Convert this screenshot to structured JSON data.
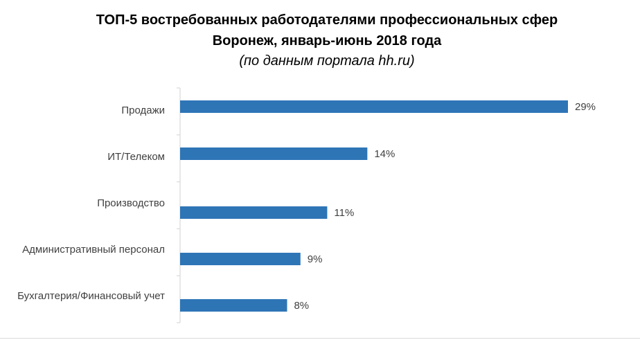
{
  "chart_data": {
    "type": "bar",
    "orientation": "horizontal",
    "title_lines": [
      "ТОП-5 востребованных работодателями профессиональных сфер",
      "Воронеж, январь-июнь 2018 года"
    ],
    "subtitle": "(по данным портала hh.ru)",
    "categories": [
      "Продажи",
      "ИТ/Телеком",
      "Производство",
      "Административный персонал",
      "Бухгалтерия/Финансовый учет"
    ],
    "values": [
      29,
      14,
      11,
      9,
      8
    ],
    "value_labels": [
      "29%",
      "14%",
      "11%",
      "9%",
      "8%"
    ],
    "xlim": [
      0,
      30
    ],
    "grid": false,
    "legend": "none",
    "bar_color": "#2e75b6"
  }
}
